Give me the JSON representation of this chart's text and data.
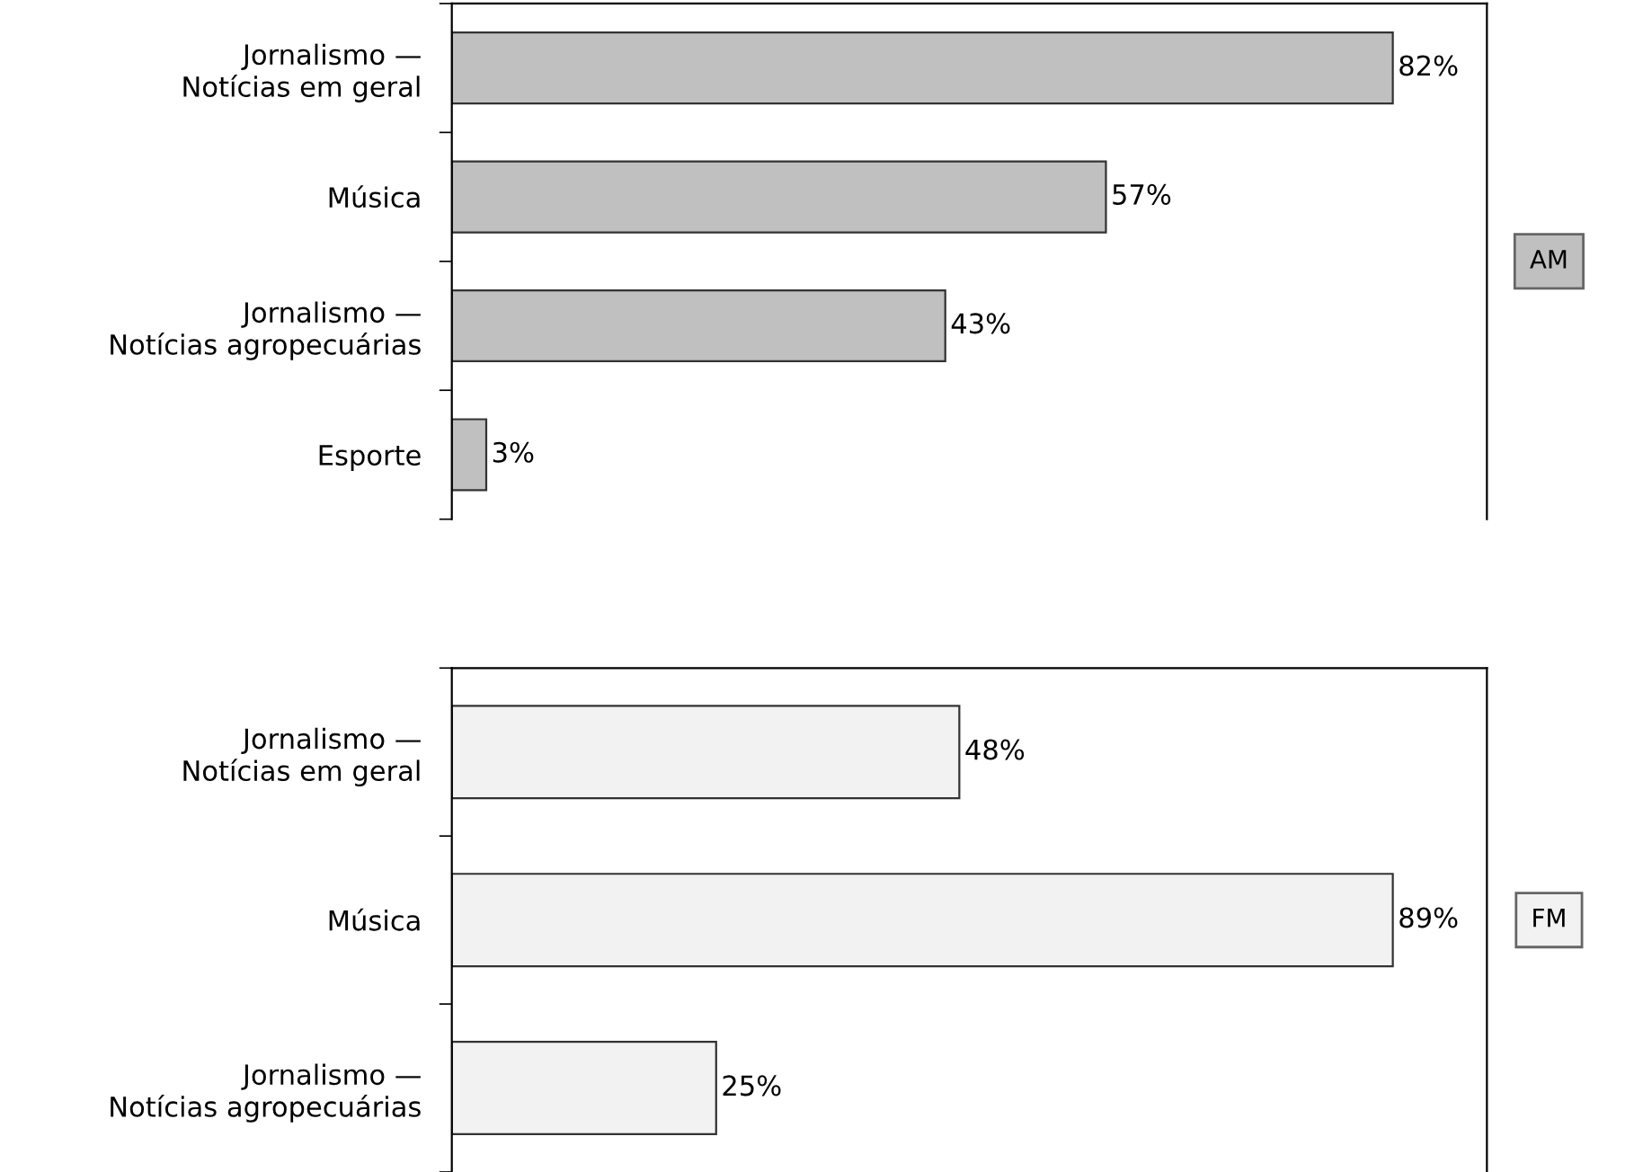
{
  "chart_data": [
    {
      "type": "bar",
      "orientation": "horizontal",
      "categories": [
        "Jornalismo —\nNotícias em geral",
        "Música",
        "Jornalismo —\nNotícias agropecuárias",
        "Esporte"
      ],
      "series": [
        {
          "name": "AM",
          "color": "#c0c0c0",
          "values": [
            82,
            57,
            43,
            3
          ],
          "value_labels": [
            "82%",
            "57%",
            "43%",
            "3%"
          ]
        }
      ],
      "legend": "right"
    },
    {
      "type": "bar",
      "orientation": "horizontal",
      "categories": [
        "Jornalismo —\nNotícias em geral",
        "Música",
        "Jornalismo —\nNotícias agropecuárias"
      ],
      "series": [
        {
          "name": "FM",
          "color": "#f2f2f2",
          "values": [
            48,
            89,
            25
          ],
          "value_labels": [
            "48%",
            "89%",
            "25%"
          ]
        }
      ],
      "legend": "right"
    }
  ]
}
